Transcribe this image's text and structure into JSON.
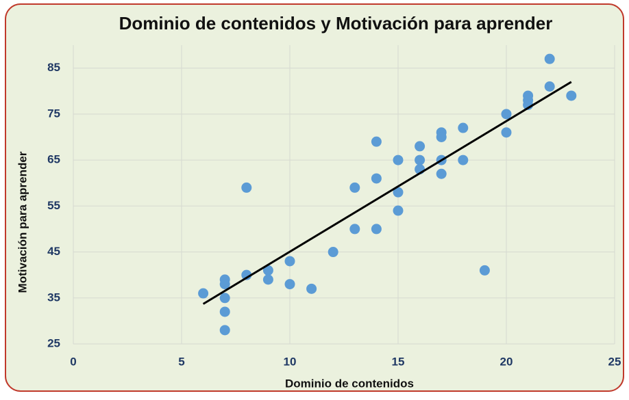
{
  "chart_data": {
    "type": "scatter",
    "title": "Dominio de contenidos y Motivación para aprender",
    "x_label": "Dominio de contenidos",
    "y_label": "Motivación para aprender",
    "series": [
      {
        "name": "Motivación",
        "color": "#5b9bd5",
        "x": [
          6,
          7,
          7,
          7,
          7,
          7,
          8,
          8,
          9,
          9,
          10,
          10,
          11,
          12,
          13,
          13,
          14,
          14,
          14,
          15,
          15,
          15,
          16,
          16,
          16,
          17,
          17,
          17,
          17,
          18,
          18,
          19,
          20,
          20,
          21,
          21,
          21,
          22,
          22,
          23
        ],
        "values": [
          36,
          39,
          38,
          35,
          32,
          28,
          59,
          40,
          41,
          39,
          43,
          38,
          37,
          45,
          59,
          50,
          69,
          61,
          50,
          65,
          58,
          54,
          68,
          65,
          63,
          71,
          70,
          65,
          62,
          72,
          65,
          41,
          75,
          71,
          79,
          78,
          77,
          87,
          81,
          79
        ]
      }
    ],
    "trendline": {
      "color": "#000000",
      "x": [
        6,
        23
      ],
      "values": [
        33.7,
        82
      ]
    },
    "xlim": [
      0,
      25
    ],
    "xticks": [
      0,
      5,
      10,
      15,
      20,
      25
    ],
    "ylim": [
      25,
      90
    ],
    "yticks": [
      25,
      35,
      45,
      55,
      65,
      75,
      85
    ],
    "grid": true
  }
}
